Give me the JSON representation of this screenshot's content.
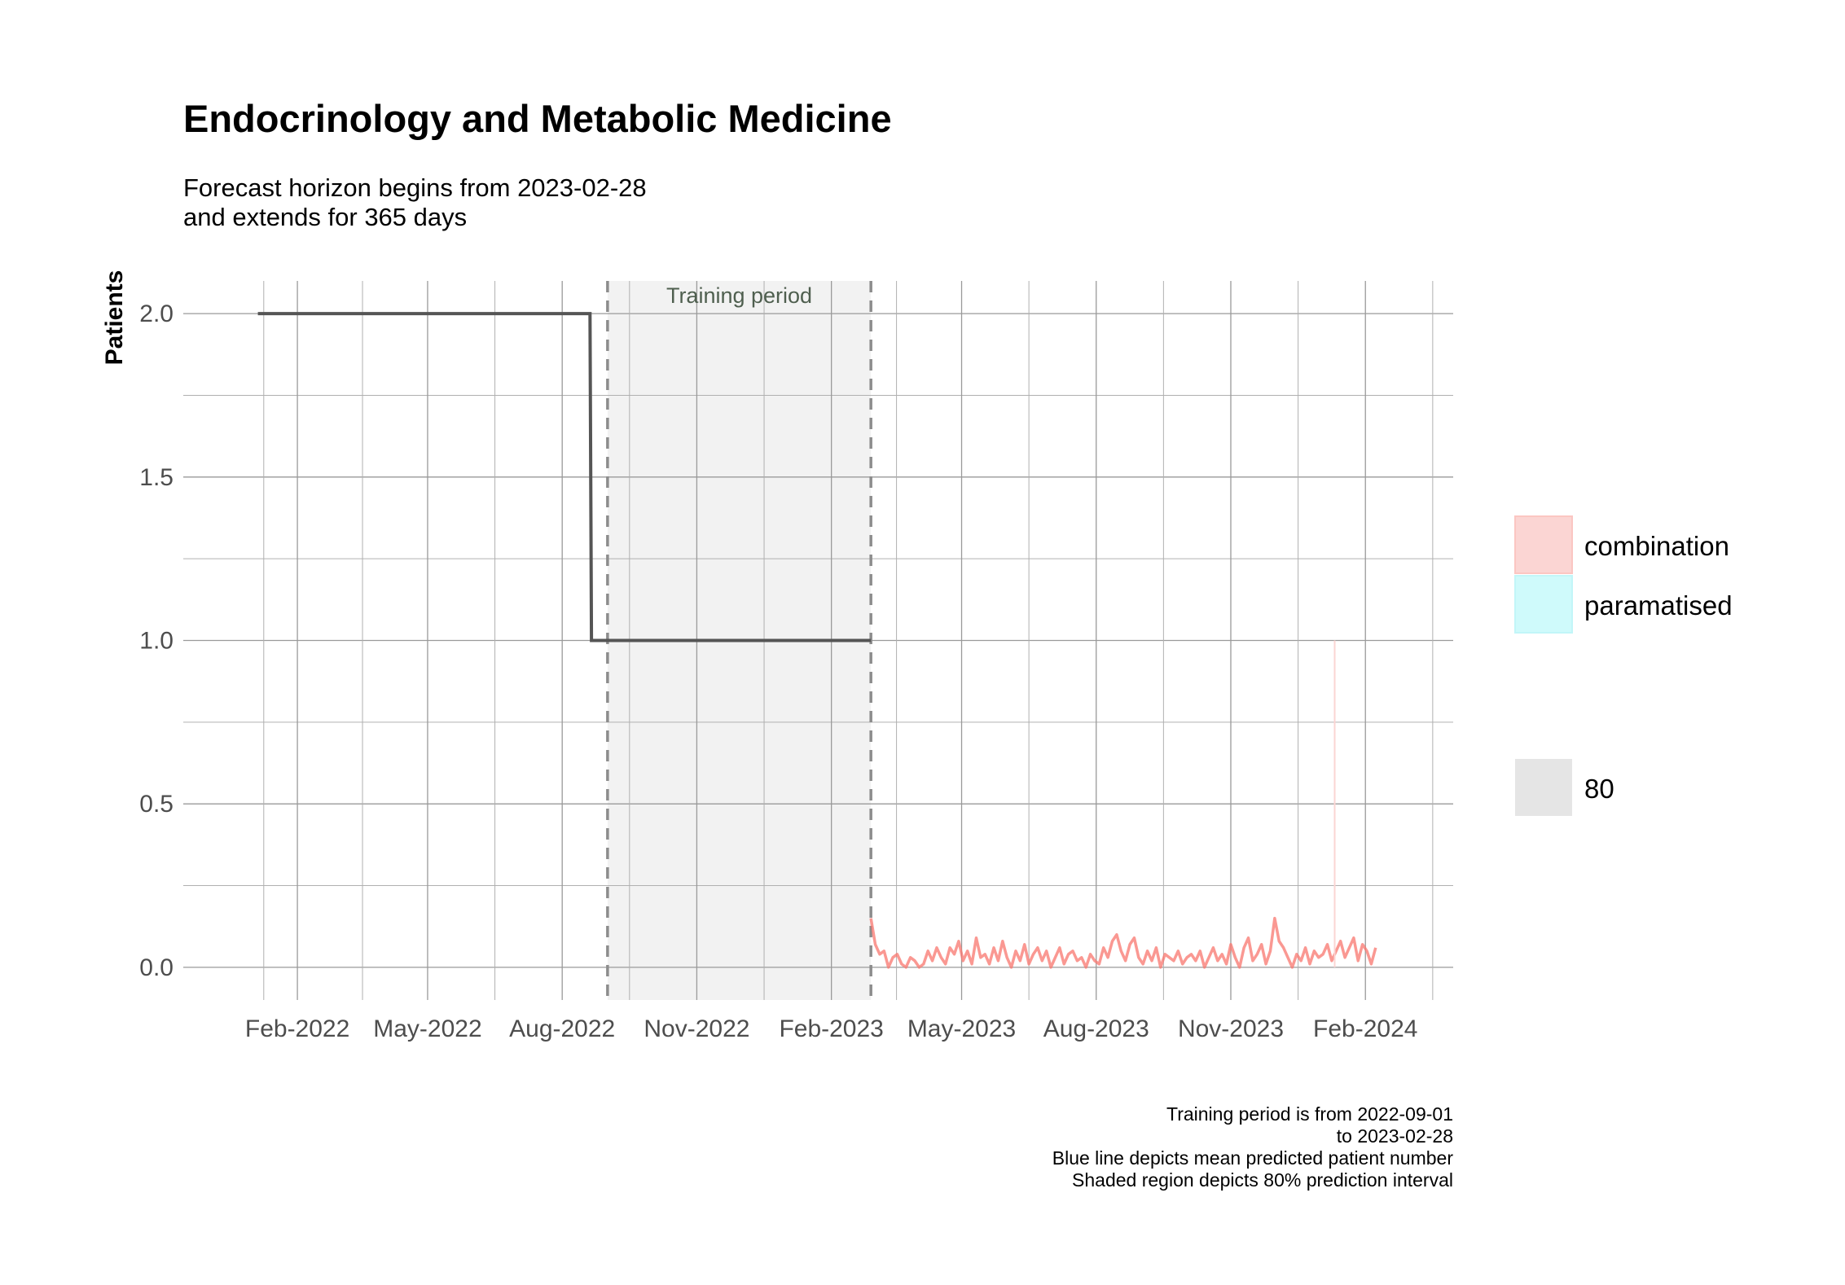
{
  "chart_data": {
    "type": "line",
    "title": "Endocrinology and Metabolic Medicine",
    "subtitle_lines": [
      "Forecast horizon begins from 2023-02-28",
      "and extends for 365 days"
    ],
    "ylabel": "Patients",
    "xlabel": "",
    "x_axis": {
      "type": "date",
      "range": [
        "2021-11-15",
        "2024-04-01"
      ],
      "ticks": [
        {
          "date": "2022-02-01",
          "label": "Feb-2022"
        },
        {
          "date": "2022-05-01",
          "label": "May-2022"
        },
        {
          "date": "2022-08-01",
          "label": "Aug-2022"
        },
        {
          "date": "2022-11-01",
          "label": "Nov-2022"
        },
        {
          "date": "2023-02-01",
          "label": "Feb-2023"
        },
        {
          "date": "2023-05-01",
          "label": "May-2023"
        },
        {
          "date": "2023-08-01",
          "label": "Aug-2023"
        },
        {
          "date": "2023-11-01",
          "label": "Nov-2023"
        },
        {
          "date": "2024-02-01",
          "label": "Feb-2024"
        }
      ]
    },
    "y_axis": {
      "range": [
        -0.1,
        2.1
      ],
      "ticks": [
        {
          "value": 0.0,
          "label": "0.0"
        },
        {
          "value": 0.5,
          "label": "0.5"
        },
        {
          "value": 1.0,
          "label": "1.0"
        },
        {
          "value": 1.5,
          "label": "1.5"
        },
        {
          "value": 2.0,
          "label": "2.0"
        }
      ]
    },
    "grid": true,
    "training_period": {
      "start": "2022-09-01",
      "end": "2023-02-28",
      "label": "Training period"
    },
    "observed": {
      "color": "#555555",
      "x": [
        "2022-01-05",
        "2022-08-20",
        "2022-08-21",
        "2023-02-28"
      ],
      "y": [
        2,
        2,
        1,
        1
      ]
    },
    "forecast": {
      "name": "combination",
      "color": "#f8766d",
      "start": "2023-02-28",
      "step_days": 3,
      "values": [
        0.15,
        0.07,
        0.04,
        0.05,
        0.0,
        0.03,
        0.04,
        0.01,
        0.0,
        0.03,
        0.02,
        0.0,
        0.01,
        0.05,
        0.02,
        0.06,
        0.03,
        0.01,
        0.06,
        0.04,
        0.08,
        0.02,
        0.05,
        0.01,
        0.09,
        0.03,
        0.04,
        0.01,
        0.06,
        0.02,
        0.08,
        0.03,
        0.0,
        0.05,
        0.02,
        0.07,
        0.01,
        0.04,
        0.06,
        0.02,
        0.05,
        0.0,
        0.03,
        0.06,
        0.01,
        0.04,
        0.05,
        0.02,
        0.03,
        0.0,
        0.04,
        0.02,
        0.01,
        0.06,
        0.03,
        0.08,
        0.1,
        0.05,
        0.02,
        0.07,
        0.09,
        0.03,
        0.01,
        0.05,
        0.02,
        0.06,
        0.0,
        0.04,
        0.03,
        0.02,
        0.05,
        0.01,
        0.03,
        0.04,
        0.02,
        0.05,
        0.0,
        0.03,
        0.06,
        0.02,
        0.04,
        0.01,
        0.07,
        0.03,
        0.0,
        0.06,
        0.09,
        0.02,
        0.04,
        0.07,
        0.01,
        0.05,
        0.15,
        0.08,
        0.06,
        0.03,
        0.0,
        0.04,
        0.02,
        0.06,
        0.01,
        0.05,
        0.03,
        0.04,
        0.07,
        0.02,
        0.05,
        0.08,
        0.03,
        0.06,
        0.09,
        0.02,
        0.07,
        0.05,
        0.01,
        0.06
      ]
    },
    "spike": {
      "date": "2024-01-11",
      "value": 1.0
    },
    "legend": {
      "position": "right",
      "series_entries": [
        {
          "label": "combination",
          "color": "#fbd5d3"
        },
        {
          "label": "paramatised",
          "color": "#cffafb"
        }
      ],
      "interval_entries": [
        {
          "label": "80",
          "color": "#e5e5e5"
        }
      ]
    },
    "caption_lines": [
      "Training period is from 2022-09-01",
      "to 2023-02-28",
      "Blue line depicts mean predicted patient number",
      "Shaded region depicts 80% prediction interval"
    ]
  }
}
